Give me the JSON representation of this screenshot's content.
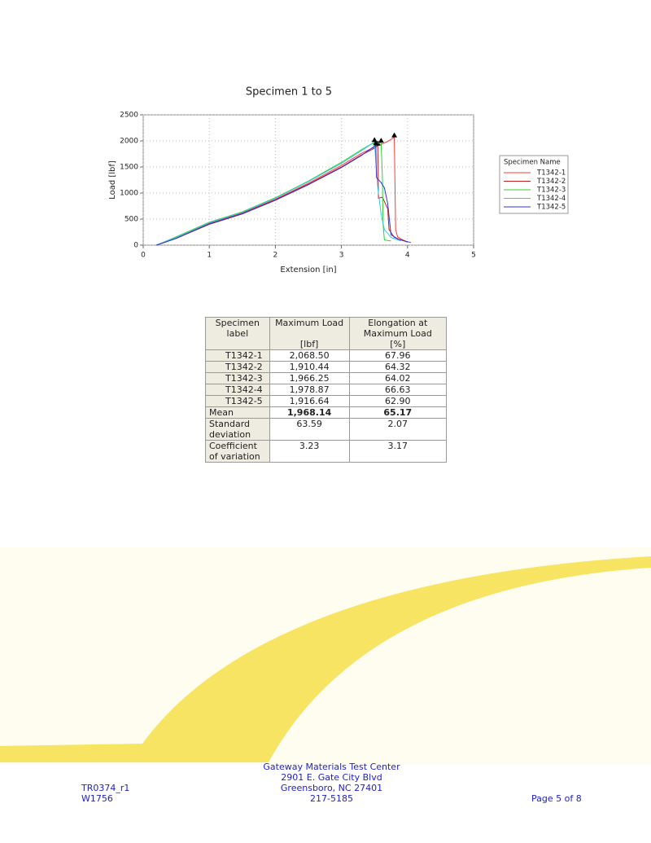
{
  "chart_data": {
    "type": "line",
    "title": "Specimen 1 to 5",
    "x_label": "Extension [in]",
    "y_label": "Load [lbf]",
    "legend_title": "Specimen Name",
    "xlim": [
      0,
      5
    ],
    "xticks": [
      0,
      1,
      2,
      3,
      4,
      5
    ],
    "ylim": [
      0,
      2500
    ],
    "yticks": [
      0,
      500,
      1000,
      1500,
      2000,
      2500
    ],
    "grid": true,
    "legend": "right",
    "series": [
      {
        "name": "T1342-1",
        "color": "#ff3a3a",
        "x": [
          0.2,
          0.5,
          1,
          1.5,
          2,
          2.5,
          3,
          3.3,
          3.5,
          3.7,
          3.8,
          3.82,
          3.85,
          3.9,
          4.0
        ],
        "values": [
          0,
          140,
          420,
          620,
          880,
          1190,
          1530,
          1760,
          1880,
          1990,
          2068.5,
          300,
          160,
          120,
          60
        ]
      },
      {
        "name": "T1342-2",
        "color": "#c02020",
        "x": [
          0.2,
          0.5,
          1,
          1.5,
          2,
          2.5,
          3,
          3.3,
          3.5,
          3.55,
          3.56,
          3.62,
          3.7,
          3.72,
          3.8,
          3.9,
          4.0
        ],
        "values": [
          0,
          130,
          410,
          610,
          870,
          1170,
          1500,
          1730,
          1860,
          1910.44,
          900,
          920,
          700,
          300,
          150,
          100,
          60
        ]
      },
      {
        "name": "T1342-3",
        "color": "#30d030",
        "x": [
          0.2,
          0.5,
          1,
          1.5,
          2,
          2.5,
          3,
          3.3,
          3.45,
          3.6,
          3.62,
          3.63,
          3.65,
          3.7,
          3.75
        ],
        "values": [
          0,
          160,
          440,
          640,
          910,
          1230,
          1590,
          1830,
          1940,
          1966.25,
          1300,
          400,
          100,
          90,
          80
        ]
      },
      {
        "name": "T1342-4",
        "color": "#30c8e8",
        "x": [
          0.2,
          0.5,
          1,
          1.5,
          2,
          2.5,
          3,
          3.3,
          3.5,
          3.52,
          3.55,
          3.6,
          3.65,
          3.75,
          3.9
        ],
        "values": [
          0,
          150,
          430,
          630,
          900,
          1220,
          1570,
          1810,
          1978.87,
          1600,
          1100,
          600,
          300,
          150,
          80
        ]
      },
      {
        "name": "T1342-5",
        "color": "#3030e0",
        "x": [
          0.2,
          0.5,
          1,
          1.5,
          2,
          2.5,
          3,
          3.3,
          3.52,
          3.53,
          3.6,
          3.65,
          3.7,
          3.75,
          3.85,
          4.05
        ],
        "values": [
          0,
          130,
          400,
          600,
          860,
          1160,
          1490,
          1720,
          1916.64,
          1300,
          1200,
          1100,
          800,
          200,
          120,
          50
        ]
      }
    ]
  },
  "table": {
    "header": [
      {
        "label": "Specimen label"
      },
      {
        "label": "Maximum Load",
        "unit": "[lbf]"
      },
      {
        "label": "Elongation at Maximum Load",
        "unit": "[%]"
      }
    ],
    "rows": [
      {
        "cells": [
          "T1342-1",
          "2,068.50",
          "67.96"
        ]
      },
      {
        "cells": [
          "T1342-2",
          "1,910.44",
          "64.32"
        ]
      },
      {
        "cells": [
          "T1342-3",
          "1,966.25",
          "64.02"
        ]
      },
      {
        "cells": [
          "T1342-4",
          "1,978.87",
          "66.63"
        ]
      },
      {
        "cells": [
          "T1342-5",
          "1,916.64",
          "62.90"
        ]
      },
      {
        "cells": [
          "Mean",
          "1,968.14",
          "65.17"
        ],
        "bold": true
      },
      {
        "cells": [
          "Standard deviation",
          "63.59",
          "2.07"
        ]
      },
      {
        "cells": [
          "Coefficient of variation",
          "3.23",
          "3.17"
        ]
      }
    ]
  },
  "footer": {
    "left": [
      "TR0374_r1",
      "W1756"
    ],
    "center": [
      "Gateway Materials Test Center",
      "2901 E. Gate City Blvd",
      "Greensboro, NC 27401",
      "217-5185"
    ],
    "right": "Page 5 of 8"
  }
}
